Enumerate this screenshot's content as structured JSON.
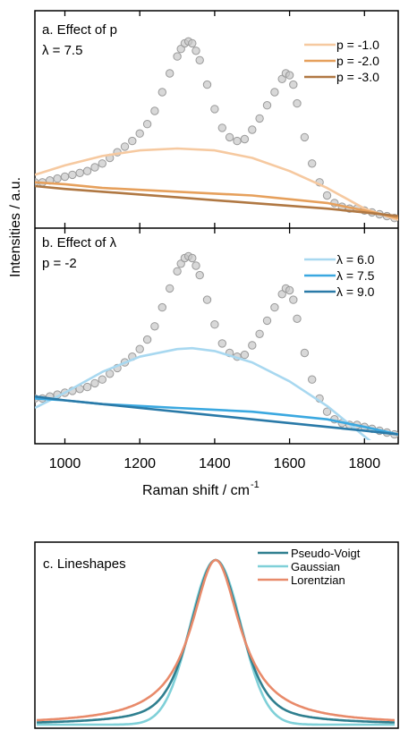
{
  "ylabel": "Intensities / a.u.",
  "xlabel": "Raman shift / cm",
  "xlabel_sup": "-1",
  "chart_data": [
    {
      "type": "line",
      "panel": "a",
      "title": "a. Effect of p",
      "subtitle": "λ = 7.5",
      "xlim": [
        920,
        1890
      ],
      "ylim": [
        0,
        1
      ],
      "x_ticks": [
        1000,
        1200,
        1400,
        1600,
        1800
      ],
      "legend_position": "top-right",
      "data_color": "#9a9a9a",
      "data_x": [
        920,
        940,
        960,
        980,
        1000,
        1020,
        1040,
        1060,
        1080,
        1100,
        1120,
        1140,
        1160,
        1180,
        1200,
        1220,
        1240,
        1260,
        1280,
        1300,
        1310,
        1320,
        1330,
        1340,
        1350,
        1360,
        1380,
        1400,
        1420,
        1440,
        1460,
        1480,
        1500,
        1520,
        1540,
        1560,
        1580,
        1590,
        1600,
        1610,
        1620,
        1640,
        1660,
        1680,
        1700,
        1720,
        1740,
        1760,
        1780,
        1800,
        1820,
        1840,
        1860,
        1880
      ],
      "data_y": [
        0.22,
        0.22,
        0.23,
        0.24,
        0.25,
        0.26,
        0.27,
        0.28,
        0.3,
        0.32,
        0.35,
        0.38,
        0.41,
        0.44,
        0.48,
        0.53,
        0.6,
        0.7,
        0.8,
        0.89,
        0.93,
        0.96,
        0.97,
        0.96,
        0.92,
        0.87,
        0.74,
        0.61,
        0.51,
        0.46,
        0.44,
        0.45,
        0.5,
        0.56,
        0.63,
        0.7,
        0.77,
        0.8,
        0.79,
        0.74,
        0.64,
        0.46,
        0.32,
        0.22,
        0.15,
        0.11,
        0.09,
        0.08,
        0.08,
        0.07,
        0.06,
        0.05,
        0.04,
        0.03
      ],
      "series": [
        {
          "name": "p = -1.0",
          "color": "#f6c9a0",
          "x": [
            920,
            1000,
            1100,
            1200,
            1300,
            1400,
            1500,
            1600,
            1700,
            1800,
            1890
          ],
          "y": [
            0.26,
            0.31,
            0.36,
            0.39,
            0.4,
            0.39,
            0.35,
            0.28,
            0.19,
            0.08,
            0.02
          ]
        },
        {
          "name": "p = -2.0",
          "color": "#e6a05c",
          "x": [
            920,
            1000,
            1100,
            1200,
            1300,
            1400,
            1500,
            1600,
            1700,
            1800,
            1890
          ],
          "y": [
            0.22,
            0.21,
            0.19,
            0.18,
            0.17,
            0.16,
            0.15,
            0.13,
            0.11,
            0.07,
            0.03
          ]
        },
        {
          "name": "p = -3.0",
          "color": "#b07843",
          "x": [
            920,
            1000,
            1100,
            1200,
            1300,
            1400,
            1500,
            1600,
            1700,
            1800,
            1890
          ],
          "y": [
            0.2,
            0.185,
            0.17,
            0.155,
            0.14,
            0.125,
            0.11,
            0.095,
            0.08,
            0.06,
            0.04
          ]
        }
      ]
    },
    {
      "type": "line",
      "panel": "b",
      "title": "b. Effect of λ",
      "subtitle": "p = -2",
      "xlim": [
        920,
        1890
      ],
      "ylim": [
        0,
        1
      ],
      "x_ticks": [
        1000,
        1200,
        1400,
        1600,
        1800
      ],
      "legend_position": "top-right",
      "data_color": "#9a9a9a",
      "data_x": [
        920,
        940,
        960,
        980,
        1000,
        1020,
        1040,
        1060,
        1080,
        1100,
        1120,
        1140,
        1160,
        1180,
        1200,
        1220,
        1240,
        1260,
        1280,
        1300,
        1310,
        1320,
        1330,
        1340,
        1350,
        1360,
        1380,
        1400,
        1420,
        1440,
        1460,
        1480,
        1500,
        1520,
        1540,
        1560,
        1580,
        1590,
        1600,
        1610,
        1620,
        1640,
        1660,
        1680,
        1700,
        1720,
        1740,
        1760,
        1780,
        1800,
        1820,
        1840,
        1860,
        1880
      ],
      "data_y": [
        0.22,
        0.22,
        0.23,
        0.24,
        0.25,
        0.26,
        0.27,
        0.28,
        0.3,
        0.32,
        0.35,
        0.38,
        0.41,
        0.44,
        0.48,
        0.53,
        0.6,
        0.7,
        0.8,
        0.89,
        0.93,
        0.96,
        0.97,
        0.96,
        0.92,
        0.87,
        0.74,
        0.61,
        0.51,
        0.46,
        0.44,
        0.45,
        0.5,
        0.56,
        0.63,
        0.7,
        0.77,
        0.8,
        0.79,
        0.74,
        0.64,
        0.46,
        0.32,
        0.22,
        0.15,
        0.11,
        0.09,
        0.08,
        0.08,
        0.07,
        0.06,
        0.05,
        0.04,
        0.03
      ],
      "series": [
        {
          "name": "λ = 6.0",
          "color": "#a8d8f0",
          "x": [
            920,
            1000,
            1100,
            1200,
            1300,
            1340,
            1400,
            1500,
            1600,
            1700,
            1800,
            1890
          ],
          "y": [
            0.17,
            0.25,
            0.36,
            0.44,
            0.48,
            0.485,
            0.47,
            0.41,
            0.31,
            0.18,
            0.02,
            -0.12
          ]
        },
        {
          "name": "λ = 7.5",
          "color": "#3aa8e0",
          "x": [
            920,
            1000,
            1100,
            1200,
            1300,
            1400,
            1500,
            1600,
            1700,
            1800,
            1890
          ],
          "y": [
            0.22,
            0.21,
            0.19,
            0.18,
            0.17,
            0.16,
            0.15,
            0.13,
            0.11,
            0.07,
            0.03
          ]
        },
        {
          "name": "λ = 9.0",
          "color": "#2a7aa8",
          "x": [
            920,
            1000,
            1100,
            1200,
            1300,
            1400,
            1500,
            1600,
            1700,
            1800,
            1890
          ],
          "y": [
            0.23,
            0.21,
            0.19,
            0.17,
            0.15,
            0.13,
            0.11,
            0.09,
            0.07,
            0.05,
            0.03
          ]
        }
      ]
    },
    {
      "type": "line",
      "panel": "c",
      "title": "c. Lineshapes",
      "center": 0,
      "width": 1,
      "legend_position": "top-right",
      "series": [
        {
          "name": "Pseudo-Voigt",
          "color": "#2f7f8f",
          "shape": "pseudo-voigt"
        },
        {
          "name": "Gaussian",
          "color": "#7fd0d8",
          "shape": "gaussian"
        },
        {
          "name": "Lorentzian",
          "color": "#e88a6a",
          "shape": "lorentzian"
        }
      ]
    }
  ]
}
